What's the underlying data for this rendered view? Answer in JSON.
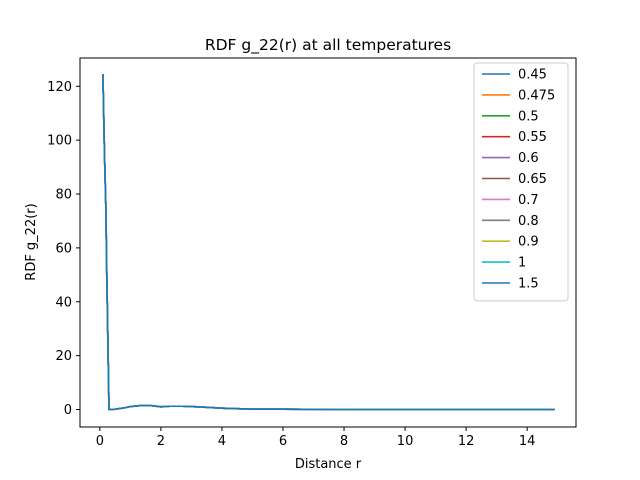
{
  "chart_data": {
    "type": "line",
    "title": "RDF g_22(r) at all temperatures",
    "xlabel": "Distance r",
    "ylabel": "RDF g_22(r)",
    "xlim": [
      -0.65,
      15.6
    ],
    "ylim": [
      -6.5,
      130.5
    ],
    "xticks": [
      0,
      2,
      4,
      6,
      8,
      10,
      12,
      14
    ],
    "yticks": [
      0,
      20,
      40,
      60,
      80,
      100,
      120
    ],
    "grid": false,
    "legend_position": "top-right",
    "x": [
      0.1,
      0.15,
      0.2,
      0.22,
      0.25,
      0.28,
      0.3,
      0.35,
      0.5,
      0.8,
      1.0,
      1.3,
      1.5,
      1.7,
      2.0,
      2.3,
      2.7,
      3.0,
      3.5,
      4.0,
      4.5,
      5.0,
      6.0,
      8.0,
      10.0,
      12.0,
      14.0,
      14.9
    ],
    "series": [
      {
        "name": "0.45",
        "color": "#1f77b4",
        "values": [
          124.5,
          96,
          74,
          55,
          35,
          14,
          0,
          0,
          0.1,
          0.6,
          1.1,
          1.4,
          1.5,
          1.4,
          1.0,
          1.2,
          1.2,
          1.1,
          0.8,
          0.5,
          0.3,
          0.1,
          0.1,
          0,
          0,
          0,
          0,
          0
        ]
      },
      {
        "name": "0.475",
        "color": "#ff7f0e",
        "values": [
          124.5,
          96,
          74,
          55,
          35,
          14,
          0,
          0,
          0.1,
          0.6,
          1.1,
          1.4,
          1.5,
          1.4,
          1.0,
          1.2,
          1.2,
          1.1,
          0.8,
          0.5,
          0.3,
          0.1,
          0.1,
          0,
          0,
          0,
          0,
          0
        ]
      },
      {
        "name": "0.5",
        "color": "#2ca02c",
        "values": [
          124.5,
          96,
          74,
          55,
          35,
          14,
          0,
          0,
          0.1,
          0.6,
          1.1,
          1.4,
          1.5,
          1.4,
          1.0,
          1.2,
          1.2,
          1.1,
          0.8,
          0.5,
          0.3,
          0.1,
          0.1,
          0,
          0,
          0,
          0,
          0
        ]
      },
      {
        "name": "0.55",
        "color": "#d62728",
        "values": [
          124.5,
          96,
          74,
          55,
          35,
          14,
          0,
          0,
          0.1,
          0.6,
          1.1,
          1.4,
          1.5,
          1.4,
          1.0,
          1.2,
          1.2,
          1.1,
          0.8,
          0.5,
          0.3,
          0.1,
          0.1,
          0,
          0,
          0,
          0,
          0
        ]
      },
      {
        "name": "0.6",
        "color": "#9467bd",
        "values": [
          124.5,
          96,
          74,
          55,
          35,
          14,
          0,
          0,
          0.1,
          0.6,
          1.1,
          1.4,
          1.5,
          1.4,
          1.0,
          1.2,
          1.2,
          1.1,
          0.8,
          0.5,
          0.3,
          0.1,
          0.1,
          0,
          0,
          0,
          0,
          0
        ]
      },
      {
        "name": "0.65",
        "color": "#8c564b",
        "values": [
          124.5,
          96,
          74,
          55,
          35,
          14,
          0,
          0,
          0.1,
          0.6,
          1.1,
          1.4,
          1.5,
          1.4,
          1.0,
          1.2,
          1.2,
          1.1,
          0.8,
          0.5,
          0.3,
          0.1,
          0.1,
          0,
          0,
          0,
          0,
          0
        ]
      },
      {
        "name": "0.7",
        "color": "#e377c2",
        "values": [
          124.5,
          96,
          74,
          55,
          35,
          14,
          0,
          0,
          0.1,
          0.6,
          1.1,
          1.4,
          1.5,
          1.4,
          1.0,
          1.2,
          1.2,
          1.1,
          0.8,
          0.5,
          0.3,
          0.1,
          0.1,
          0,
          0,
          0,
          0,
          0
        ]
      },
      {
        "name": "0.8",
        "color": "#7f7f7f",
        "values": [
          124.5,
          96,
          74,
          55,
          35,
          14,
          0,
          0,
          0.1,
          0.6,
          1.1,
          1.4,
          1.5,
          1.4,
          1.0,
          1.2,
          1.2,
          1.1,
          0.8,
          0.5,
          0.3,
          0.1,
          0.1,
          0,
          0,
          0,
          0,
          0
        ]
      },
      {
        "name": "0.9",
        "color": "#bcbd22",
        "values": [
          124.5,
          96,
          74,
          55,
          35,
          14,
          0,
          0,
          0.1,
          0.6,
          1.1,
          1.4,
          1.5,
          1.4,
          1.0,
          1.2,
          1.2,
          1.1,
          0.8,
          0.5,
          0.3,
          0.1,
          0.1,
          0,
          0,
          0,
          0,
          0
        ]
      },
      {
        "name": "1",
        "color": "#17becf",
        "values": [
          124.5,
          96,
          74,
          55,
          35,
          14,
          0,
          0,
          0.1,
          0.6,
          1.1,
          1.4,
          1.5,
          1.4,
          1.0,
          1.2,
          1.2,
          1.1,
          0.8,
          0.5,
          0.3,
          0.1,
          0.1,
          0,
          0,
          0,
          0,
          0
        ]
      },
      {
        "name": "1.5",
        "color": "#1f77b4",
        "values": [
          124.5,
          96,
          74,
          55,
          35,
          14,
          0,
          0,
          0.1,
          0.6,
          1.1,
          1.4,
          1.5,
          1.4,
          1.0,
          1.2,
          1.2,
          1.1,
          0.8,
          0.5,
          0.3,
          0.1,
          0.1,
          0,
          0,
          0,
          0,
          0
        ]
      }
    ]
  }
}
